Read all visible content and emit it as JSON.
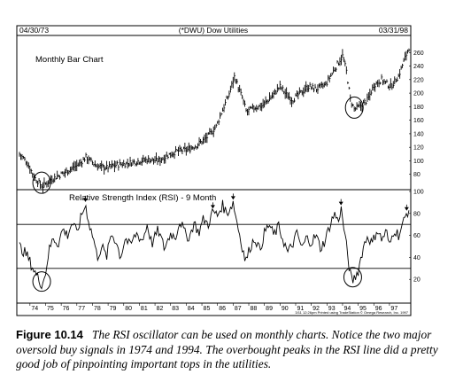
{
  "header": {
    "start_date": "04/30/73",
    "title": "(*DWU) Dow Utilities",
    "end_date": "03/31/98"
  },
  "caption": {
    "label": "Figure 10.14",
    "text": "The RSI oscillator can be used on monthly charts. Notice the two major oversold buy signals in 1974 and 1994. The overbought peaks in the RSI line did a pretty good job of pinpointing important tops in the utilities."
  },
  "footer": {
    "credit": "3/11 12:26pm Printed using TradeStation © Omega Research, Inc. 1997"
  },
  "chart_data": [
    {
      "type": "bar",
      "subtype": "ohlc-monthly",
      "title": "Monthly Bar Chart",
      "x": {
        "range": [
          "1973-04",
          "1998-03"
        ],
        "tick_labels": [
          "74",
          "75",
          "76",
          "77",
          "78",
          "79",
          "80",
          "81",
          "82",
          "83",
          "84",
          "85",
          "86",
          "87",
          "88",
          "89",
          "90",
          "91",
          "92",
          "93",
          "94",
          "95",
          "96",
          "97"
        ]
      },
      "y": {
        "range": [
          60,
          280
        ],
        "ticks": [
          80,
          100,
          120,
          140,
          160,
          180,
          200,
          220,
          240,
          260
        ],
        "position": "right"
      },
      "price_path": [
        [
          "1973.33",
          110
        ],
        [
          "1973.8",
          98
        ],
        [
          "1974.3",
          75
        ],
        [
          "1974.55",
          68
        ],
        [
          "1974.8",
          62
        ],
        [
          "1975.3",
          72
        ],
        [
          "1976.0",
          80
        ],
        [
          "1976.6",
          88
        ],
        [
          "1977.2",
          96
        ],
        [
          "1977.6",
          106
        ],
        [
          "1977.85",
          100
        ],
        [
          "1978.3",
          92
        ],
        [
          "1978.9",
          90
        ],
        [
          "1979.5",
          94
        ],
        [
          "1980.2",
          96
        ],
        [
          "1981.0",
          100
        ],
        [
          "1981.6",
          102
        ],
        [
          "1982.2",
          100
        ],
        [
          "1982.8",
          108
        ],
        [
          "1983.4",
          114
        ],
        [
          "1984.0",
          116
        ],
        [
          "1984.6",
          122
        ],
        [
          "1985.3",
          134
        ],
        [
          "1985.9",
          150
        ],
        [
          "1986.3",
          174
        ],
        [
          "1986.7",
          196
        ],
        [
          "1987.1",
          226
        ],
        [
          "1987.3",
          210
        ],
        [
          "1987.6",
          192
        ],
        [
          "1987.85",
          172
        ],
        [
          "1988.3",
          178
        ],
        [
          "1988.9",
          182
        ],
        [
          "1989.5",
          196
        ],
        [
          "1990.0",
          210
        ],
        [
          "1990.4",
          198
        ],
        [
          "1990.8",
          190
        ],
        [
          "1991.3",
          200
        ],
        [
          "1991.8",
          210
        ],
        [
          "1992.3",
          206
        ],
        [
          "1992.9",
          212
        ],
        [
          "1993.4",
          232
        ],
        [
          "1993.8",
          248
        ],
        [
          "1994.0",
          255
        ],
        [
          "1994.25",
          232
        ],
        [
          "1994.5",
          190
        ],
        [
          "1994.75",
          176
        ],
        [
          "1995.1",
          180
        ],
        [
          "1995.6",
          190
        ],
        [
          "1996.0",
          212
        ],
        [
          "1996.5",
          220
        ],
        [
          "1996.8",
          214
        ],
        [
          "1997.1",
          210
        ],
        [
          "1997.6",
          226
        ],
        [
          "1997.9",
          246
        ],
        [
          "1998.25",
          268
        ]
      ]
    },
    {
      "type": "line",
      "title": "Relative Strength Index (RSI) - 9 Month",
      "y": {
        "range": [
          0,
          100
        ],
        "ticks": [
          20,
          40,
          60,
          80,
          100
        ],
        "position": "right"
      },
      "reference_lines": [
        70,
        30
      ],
      "rsi_path": [
        [
          "1973.33",
          50
        ],
        [
          "1973.8",
          42
        ],
        [
          "1974.2",
          30
        ],
        [
          "1974.55",
          20
        ],
        [
          "1974.75",
          16
        ],
        [
          "1974.95",
          22
        ],
        [
          "1975.2",
          45
        ],
        [
          "1975.5",
          58
        ],
        [
          "1975.8",
          52
        ],
        [
          "1976.1",
          66
        ],
        [
          "1976.4",
          60
        ],
        [
          "1976.7",
          72
        ],
        [
          "1977.0",
          62
        ],
        [
          "1977.3",
          78
        ],
        [
          "1977.55",
          88
        ],
        [
          "1977.8",
          70
        ],
        [
          "1978.1",
          55
        ],
        [
          "1978.3",
          40
        ],
        [
          "1978.6",
          50
        ],
        [
          "1978.9",
          40
        ],
        [
          "1979.2",
          62
        ],
        [
          "1979.5",
          55
        ],
        [
          "1979.8",
          40
        ],
        [
          "1980.1",
          58
        ],
        [
          "1980.4",
          50
        ],
        [
          "1980.8",
          62
        ],
        [
          "1981.2",
          55
        ],
        [
          "1981.5",
          70
        ],
        [
          "1981.8",
          52
        ],
        [
          "1982.2",
          65
        ],
        [
          "1982.6",
          48
        ],
        [
          "1983.0",
          62
        ],
        [
          "1983.3",
          58
        ],
        [
          "1983.6",
          74
        ],
        [
          "1983.9",
          62
        ],
        [
          "1984.2",
          58
        ],
        [
          "1984.5",
          72
        ],
        [
          "1984.8",
          62
        ],
        [
          "1985.1",
          75
        ],
        [
          "1985.4",
          70
        ],
        [
          "1985.7",
          82
        ],
        [
          "1986.0",
          78
        ],
        [
          "1986.3",
          88
        ],
        [
          "1986.6",
          80
        ],
        [
          "1987.0",
          90
        ],
        [
          "1987.25",
          72
        ],
        [
          "1987.5",
          55
        ],
        [
          "1987.8",
          36
        ],
        [
          "1988.1",
          50
        ],
        [
          "1988.4",
          58
        ],
        [
          "1988.7",
          46
        ],
        [
          "1989.0",
          62
        ],
        [
          "1989.3",
          70
        ],
        [
          "1989.6",
          60
        ],
        [
          "1989.9",
          68
        ],
        [
          "1990.2",
          56
        ],
        [
          "1990.5",
          44
        ],
        [
          "1990.8",
          52
        ],
        [
          "1991.1",
          62
        ],
        [
          "1991.4",
          48
        ],
        [
          "1991.7",
          58
        ],
        [
          "1992.0",
          54
        ],
        [
          "1992.3",
          60
        ],
        [
          "1992.6",
          48
        ],
        [
          "1992.9",
          56
        ],
        [
          "1993.2",
          70
        ],
        [
          "1993.5",
          80
        ],
        [
          "1993.7",
          72
        ],
        [
          "1993.9",
          85
        ],
        [
          "1994.1",
          65
        ],
        [
          "1994.3",
          45
        ],
        [
          "1994.45",
          28
        ],
        [
          "1994.6",
          18
        ],
        [
          "1994.8",
          22
        ],
        [
          "1995.0",
          28
        ],
        [
          "1995.3",
          48
        ],
        [
          "1995.6",
          60
        ],
        [
          "1995.9",
          52
        ],
        [
          "1996.2",
          66
        ],
        [
          "1996.5",
          56
        ],
        [
          "1996.8",
          64
        ],
        [
          "1997.0",
          50
        ],
        [
          "1997.3",
          66
        ],
        [
          "1997.6",
          60
        ],
        [
          "1997.9",
          72
        ],
        [
          "1998.1",
          80
        ],
        [
          "1998.25",
          84
        ]
      ],
      "overbought_peaks": [
        "1977.55",
        "1985.7",
        "1987.0",
        "1993.9",
        "1998.1"
      ],
      "circled_buy_signals": [
        "1974",
        "1994"
      ]
    }
  ]
}
